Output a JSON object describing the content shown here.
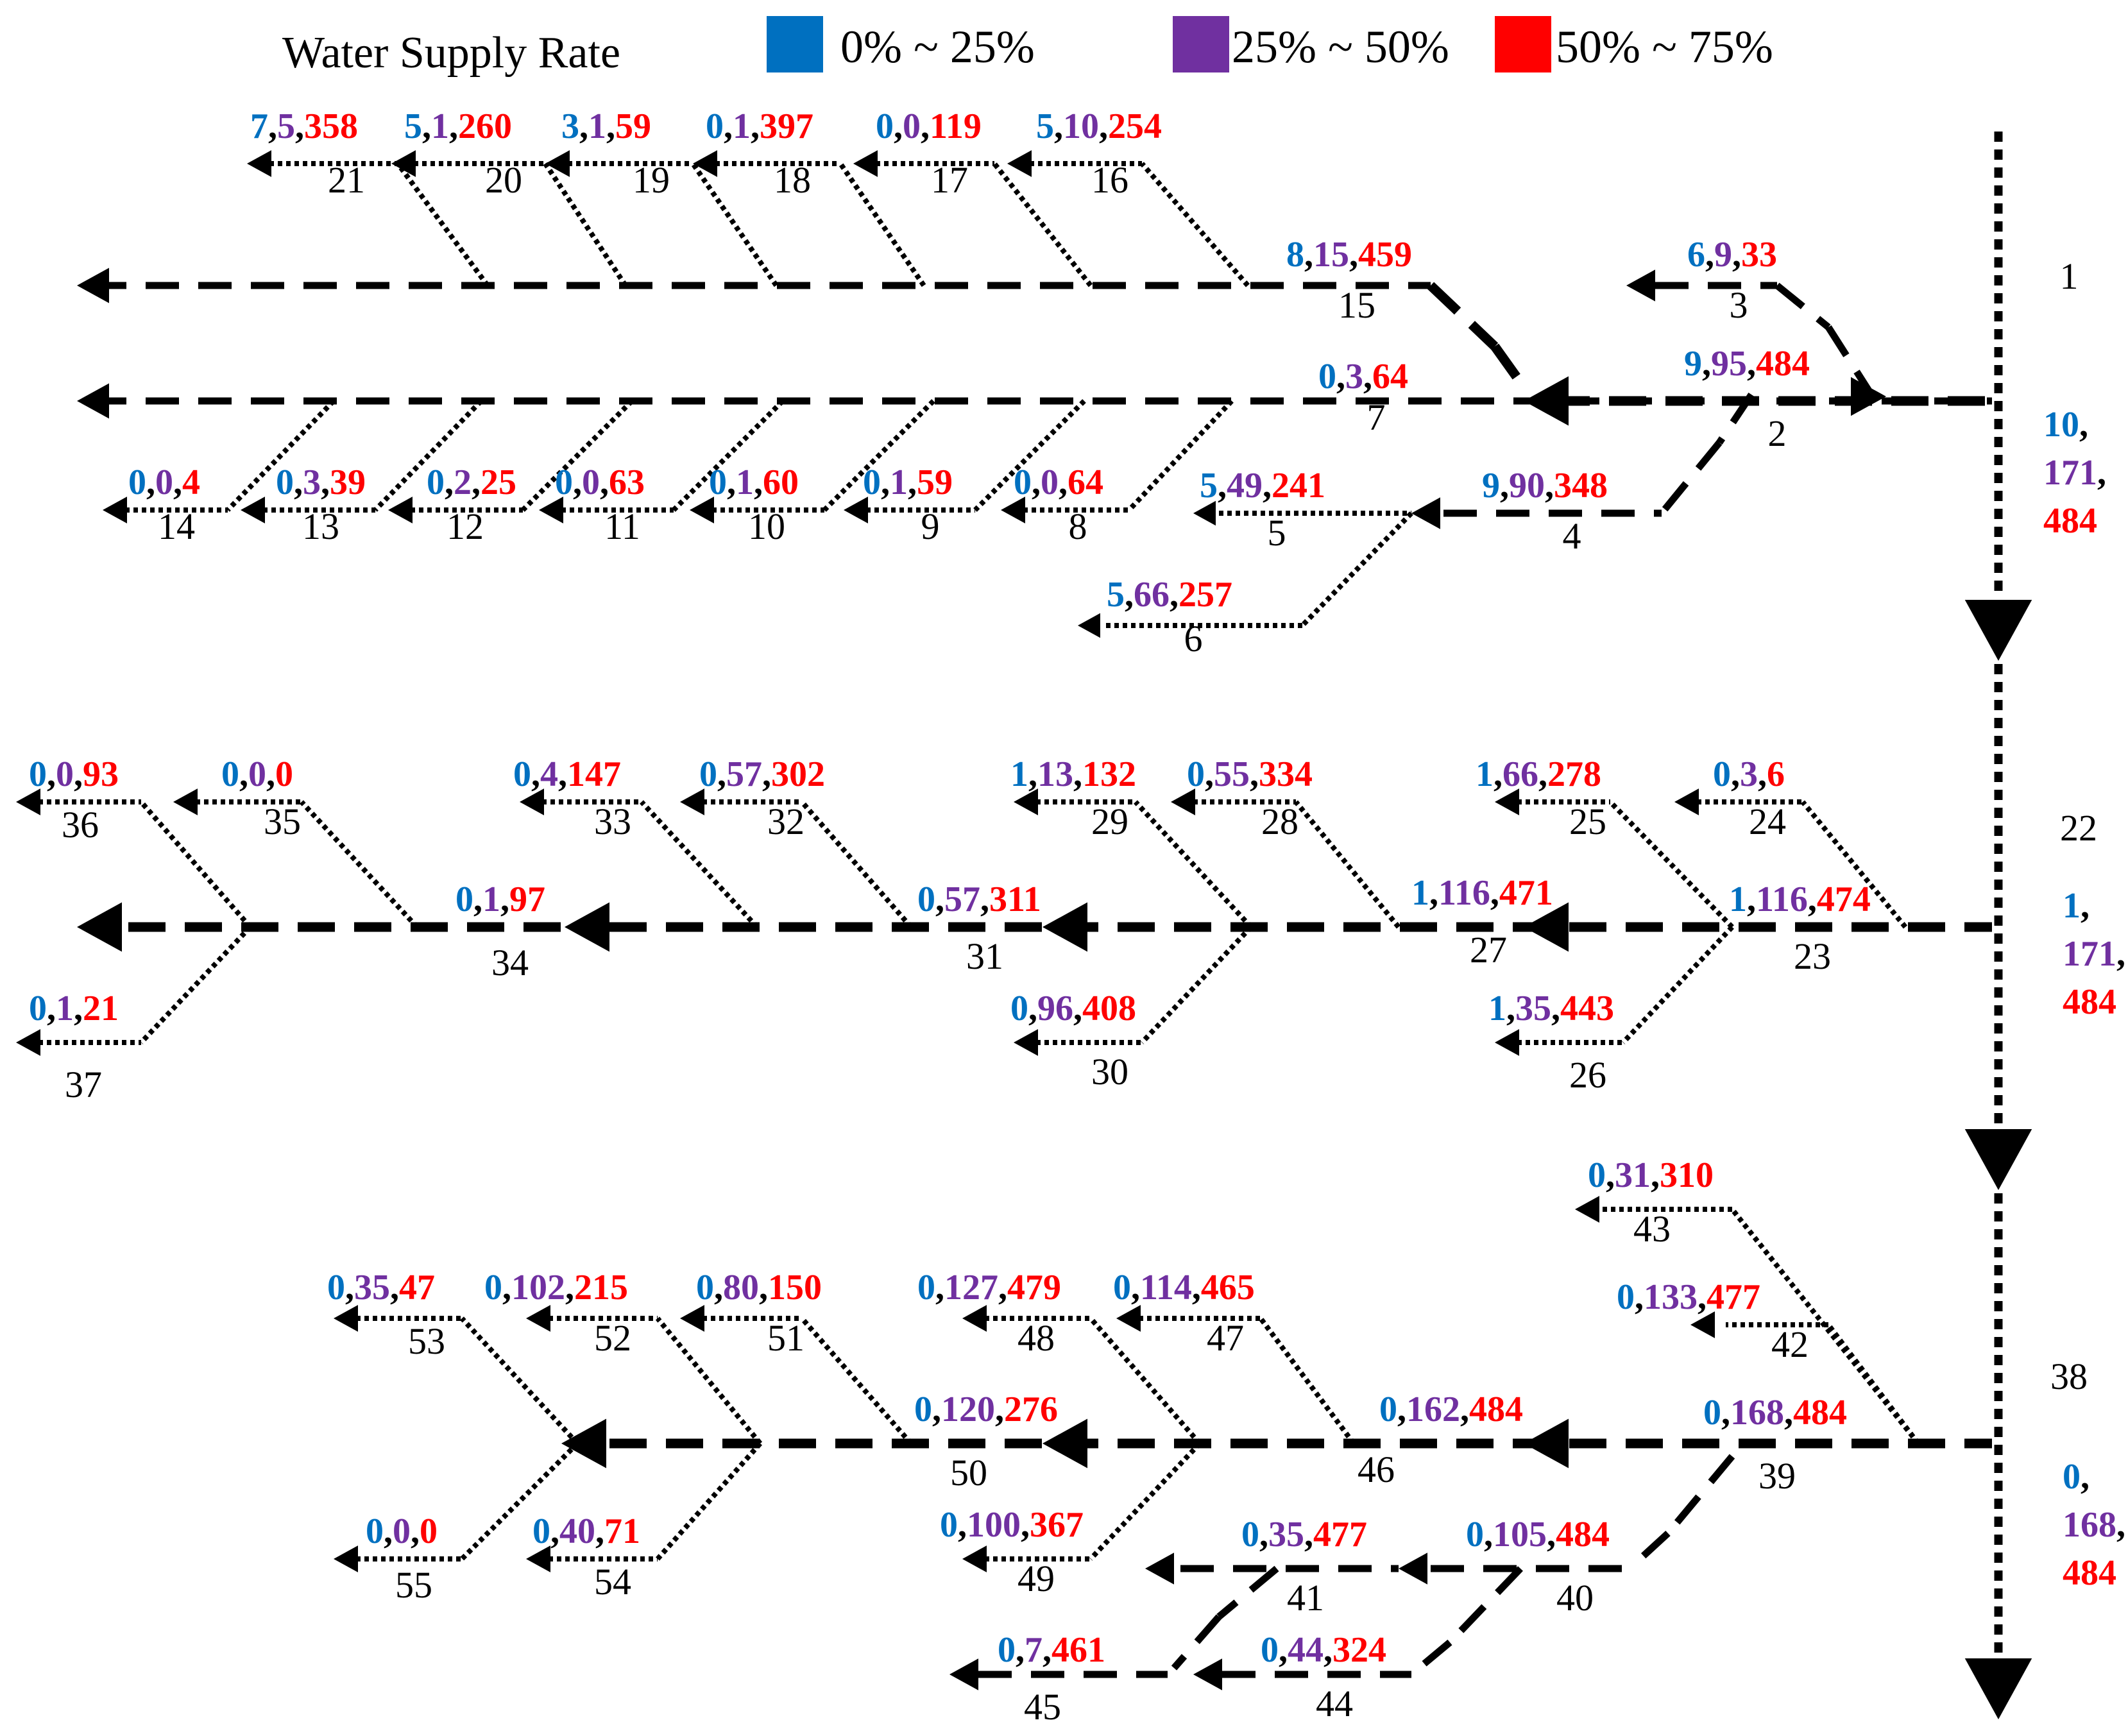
{
  "legend": {
    "title": "Water Supply Rate",
    "items": [
      {
        "label": "0% ~ 25%",
        "color": "#0070C0"
      },
      {
        "label": "25% ~ 50%",
        "color": "#7030A0"
      },
      {
        "label": "50% ~ 75%",
        "color": "#FF0000"
      }
    ]
  },
  "colors": {
    "blue": "#0070C0",
    "purple": "#7030A0",
    "red": "#FF0000",
    "line": "#000000"
  },
  "nodes": [
    {
      "id": "1",
      "values": [
        "10",
        "171",
        "484"
      ]
    },
    {
      "id": "2",
      "values": [
        "9",
        "95",
        "484"
      ]
    },
    {
      "id": "3",
      "values": [
        "6",
        "9",
        "33"
      ]
    },
    {
      "id": "4",
      "values": [
        "9",
        "90",
        "348"
      ]
    },
    {
      "id": "5",
      "values": [
        "5",
        "49",
        "241"
      ]
    },
    {
      "id": "6",
      "values": [
        "5",
        "66",
        "257"
      ]
    },
    {
      "id": "7",
      "values": [
        "0",
        "3",
        "64"
      ]
    },
    {
      "id": "8",
      "values": [
        "0",
        "0",
        "64"
      ]
    },
    {
      "id": "9",
      "values": [
        "0",
        "1",
        "59"
      ]
    },
    {
      "id": "10",
      "values": [
        "0",
        "1",
        "60"
      ]
    },
    {
      "id": "11",
      "values": [
        "0",
        "0",
        "63"
      ]
    },
    {
      "id": "12",
      "values": [
        "0",
        "2",
        "25"
      ]
    },
    {
      "id": "13",
      "values": [
        "0",
        "3",
        "39"
      ]
    },
    {
      "id": "14",
      "values": [
        "0",
        "0",
        "4"
      ]
    },
    {
      "id": "15",
      "values": [
        "8",
        "15",
        "459"
      ]
    },
    {
      "id": "16",
      "values": [
        "5",
        "10",
        "254"
      ]
    },
    {
      "id": "17",
      "values": [
        "0",
        "0",
        "119"
      ]
    },
    {
      "id": "18",
      "values": [
        "0",
        "1",
        "397"
      ]
    },
    {
      "id": "19",
      "values": [
        "3",
        "1",
        "59"
      ]
    },
    {
      "id": "20",
      "values": [
        "5",
        "1",
        "260"
      ]
    },
    {
      "id": "21",
      "values": [
        "7",
        "5",
        "358"
      ]
    },
    {
      "id": "22",
      "values": [
        "1",
        "171",
        "484"
      ]
    },
    {
      "id": "23",
      "values": [
        "1",
        "116",
        "474"
      ]
    },
    {
      "id": "24",
      "values": [
        "0",
        "3",
        "6"
      ]
    },
    {
      "id": "25",
      "values": [
        "1",
        "66",
        "278"
      ]
    },
    {
      "id": "26",
      "values": [
        "1",
        "35",
        "443"
      ]
    },
    {
      "id": "27",
      "values": [
        "1",
        "116",
        "471"
      ]
    },
    {
      "id": "28",
      "values": [
        "0",
        "55",
        "334"
      ]
    },
    {
      "id": "29",
      "values": [
        "1",
        "13",
        "132"
      ]
    },
    {
      "id": "30",
      "values": [
        "0",
        "96",
        "408"
      ]
    },
    {
      "id": "31",
      "values": [
        "0",
        "57",
        "311"
      ]
    },
    {
      "id": "32",
      "values": [
        "0",
        "57",
        "302"
      ]
    },
    {
      "id": "33",
      "values": [
        "0",
        "4",
        "147"
      ]
    },
    {
      "id": "34",
      "values": [
        "0",
        "1",
        "97"
      ]
    },
    {
      "id": "35",
      "values": [
        "0",
        "0",
        "0"
      ]
    },
    {
      "id": "36",
      "values": [
        "0",
        "0",
        "93"
      ]
    },
    {
      "id": "37",
      "values": [
        "0",
        "1",
        "21"
      ]
    },
    {
      "id": "38",
      "values": [
        "0",
        "168",
        "484"
      ]
    },
    {
      "id": "39",
      "values": [
        "0",
        "168",
        "484"
      ]
    },
    {
      "id": "40",
      "values": [
        "0",
        "105",
        "484"
      ]
    },
    {
      "id": "41",
      "values": [
        "0",
        "35",
        "477"
      ]
    },
    {
      "id": "42",
      "values": [
        "0",
        "133",
        "477"
      ]
    },
    {
      "id": "43",
      "values": [
        "0",
        "31",
        "310"
      ]
    },
    {
      "id": "44",
      "values": [
        "0",
        "44",
        "324"
      ]
    },
    {
      "id": "45",
      "values": [
        "0",
        "7",
        "461"
      ]
    },
    {
      "id": "46",
      "values": [
        "0",
        "162",
        "484"
      ]
    },
    {
      "id": "47",
      "values": [
        "0",
        "114",
        "465"
      ]
    },
    {
      "id": "48",
      "values": [
        "0",
        "127",
        "479"
      ]
    },
    {
      "id": "49",
      "values": [
        "0",
        "100",
        "367"
      ]
    },
    {
      "id": "50",
      "values": [
        "0",
        "120",
        "276"
      ]
    },
    {
      "id": "51",
      "values": [
        "0",
        "80",
        "150"
      ]
    },
    {
      "id": "52",
      "values": [
        "0",
        "102",
        "215"
      ]
    },
    {
      "id": "53",
      "values": [
        "0",
        "35",
        "47"
      ]
    },
    {
      "id": "54",
      "values": [
        "0",
        "40",
        "71"
      ]
    },
    {
      "id": "55",
      "values": [
        "0",
        "0",
        "0"
      ]
    }
  ]
}
